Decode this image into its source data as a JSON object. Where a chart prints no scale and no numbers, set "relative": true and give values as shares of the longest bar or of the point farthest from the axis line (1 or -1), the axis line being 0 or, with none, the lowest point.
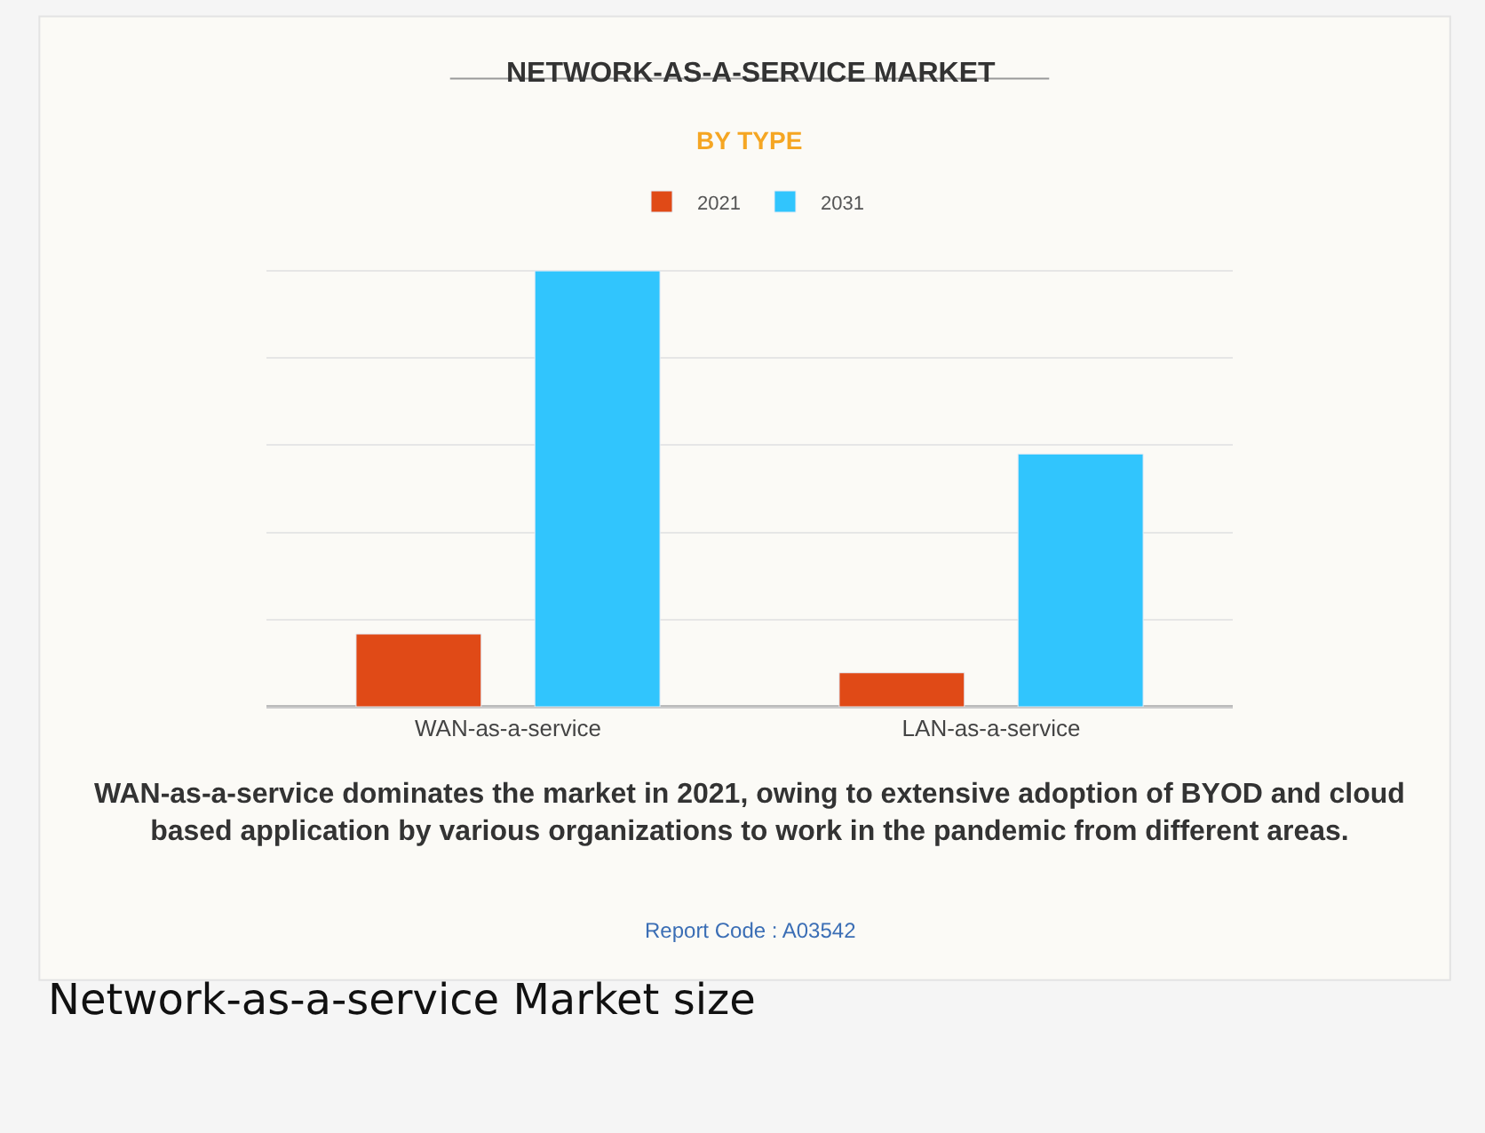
{
  "chart_data": {
    "type": "bar",
    "title": "NETWORK-AS-A-SERVICE MARKET",
    "subtitle": "BY TYPE",
    "categories": [
      "WAN-as-a-service",
      "LAN-as-a-service"
    ],
    "series": [
      {
        "name": "2021",
        "color": "#e04a17",
        "values": [
          0.167,
          0.078
        ]
      },
      {
        "name": "2031",
        "color": "#31c5fd",
        "values": [
          1,
          0.58
        ]
      }
    ],
    "relative": true,
    "grid": "y",
    "legend": "top",
    "annotations": [
      "WAN-as-a-service dominates the market in 2021, owing to extensive adoption of BYOD and cloud based application by various organizations to work in the pandemic from different areas.",
      "Report Code : A03542",
      "Network-as-a-service Market size"
    ]
  }
}
